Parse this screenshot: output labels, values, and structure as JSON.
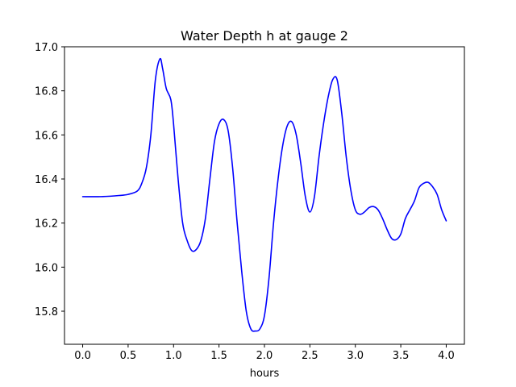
{
  "chart_data": {
    "type": "line",
    "title": "Water Depth h at gauge 2",
    "xlabel": "hours",
    "ylabel": "",
    "xlim": [
      -0.2,
      4.2
    ],
    "ylim": [
      15.65,
      17.0
    ],
    "grid": false,
    "legend": "none",
    "x_ticks": [
      0.0,
      0.5,
      1.0,
      1.5,
      2.0,
      2.5,
      3.0,
      3.5,
      4.0
    ],
    "x_tick_labels": [
      "0.0",
      "0.5",
      "1.0",
      "1.5",
      "2.0",
      "2.5",
      "3.0",
      "3.5",
      "4.0"
    ],
    "y_ticks": [
      15.8,
      16.0,
      16.2,
      16.4,
      16.6,
      16.8,
      17.0
    ],
    "y_tick_labels": [
      "15.8",
      "16.0",
      "16.2",
      "16.4",
      "16.6",
      "16.8",
      "17.0"
    ],
    "series": [
      {
        "color": "#0000ff",
        "x": [
          0.0,
          0.2,
          0.4,
          0.5,
          0.6,
          0.65,
          0.7,
          0.75,
          0.8,
          0.85,
          0.88,
          0.92,
          0.97,
          1.0,
          1.05,
          1.1,
          1.15,
          1.2,
          1.25,
          1.3,
          1.35,
          1.4,
          1.45,
          1.5,
          1.55,
          1.6,
          1.65,
          1.7,
          1.75,
          1.8,
          1.85,
          1.9,
          1.95,
          2.0,
          2.05,
          2.1,
          2.15,
          2.2,
          2.25,
          2.3,
          2.35,
          2.4,
          2.45,
          2.5,
          2.55,
          2.6,
          2.65,
          2.7,
          2.75,
          2.8,
          2.85,
          2.9,
          2.95,
          3.0,
          3.05,
          3.1,
          3.15,
          3.2,
          3.25,
          3.3,
          3.35,
          3.4,
          3.45,
          3.5,
          3.55,
          3.6,
          3.65,
          3.7,
          3.75,
          3.8,
          3.85,
          3.9,
          3.95,
          4.0
        ],
        "y": [
          16.32,
          16.32,
          16.325,
          16.33,
          16.345,
          16.38,
          16.45,
          16.6,
          16.85,
          16.945,
          16.9,
          16.81,
          16.76,
          16.65,
          16.4,
          16.2,
          16.12,
          16.075,
          16.08,
          16.12,
          16.22,
          16.4,
          16.57,
          16.65,
          16.67,
          16.62,
          16.45,
          16.2,
          15.98,
          15.8,
          15.72,
          15.71,
          15.72,
          15.78,
          15.95,
          16.2,
          16.4,
          16.55,
          16.64,
          16.66,
          16.6,
          16.47,
          16.32,
          16.25,
          16.32,
          16.5,
          16.65,
          16.77,
          16.85,
          16.85,
          16.7,
          16.5,
          16.35,
          16.26,
          16.24,
          16.25,
          16.27,
          16.275,
          16.26,
          16.22,
          16.17,
          16.13,
          16.125,
          16.15,
          16.22,
          16.26,
          16.3,
          16.36,
          16.38,
          16.385,
          16.365,
          16.33,
          16.26,
          16.21
        ]
      }
    ]
  }
}
